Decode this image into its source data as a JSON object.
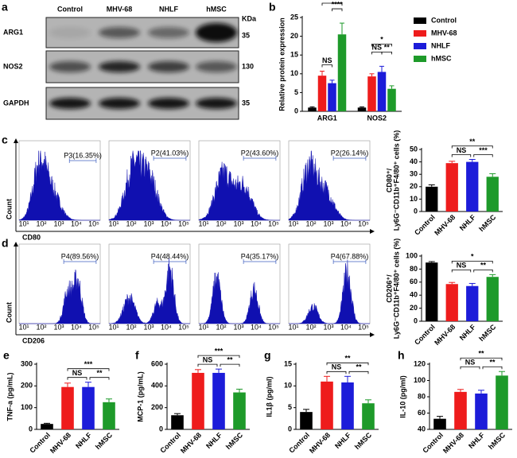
{
  "blot": {
    "panel": "a",
    "lanes": [
      "Control",
      "MHV-68",
      "NHLF",
      "hMSC"
    ],
    "kda_label": "KDa",
    "rows": [
      {
        "name": "ARG1",
        "kda": 35
      },
      {
        "name": "NOS2",
        "kda": 130
      },
      {
        "name": "GAPDH",
        "kda": 35
      }
    ]
  },
  "flow": [
    {
      "panel": "c",
      "ylabel": "Count",
      "xlabel": "CD80",
      "xtick_labels": [
        "10¹",
        "10²",
        "10³",
        "10⁴",
        "10⁵"
      ],
      "gates": [
        "P3(16.35%)",
        "P2(41.03%)",
        "P2(43.60%)",
        "P2(26.14%)"
      ]
    },
    {
      "panel": "d",
      "ylabel": "Count",
      "xlabel": "CD206",
      "xtick_labels": [
        "10¹",
        "10²",
        "10³",
        "10⁴",
        "10⁵"
      ],
      "gates": [
        "P4(89.56%)",
        "P4(48.44%)",
        "P4(35.17%)",
        "P4(67.88%)"
      ]
    }
  ],
  "chart_data": [
    {
      "type": "grouped-bar",
      "panel": "b",
      "ylabel": "Relative protein expression",
      "categories": [
        "ARG1",
        "NOS2"
      ],
      "series": [
        {
          "name": "Control",
          "color": "#000000",
          "values": [
            1,
            1
          ],
          "errors": [
            0.2,
            0.2
          ]
        },
        {
          "name": "MHV-68",
          "color": "#ee1c1c",
          "values": [
            9.5,
            9.3
          ],
          "errors": [
            1.2,
            0.7
          ]
        },
        {
          "name": "NHLF",
          "color": "#1c1cd9",
          "values": [
            7.5,
            10.5
          ],
          "errors": [
            0.8,
            1.5
          ]
        },
        {
          "name": "hMSC",
          "color": "#1e9a2a",
          "values": [
            20.5,
            6
          ],
          "errors": [
            3,
            0.8
          ]
        }
      ],
      "ylim": [
        0,
        25
      ],
      "yticks": [
        0,
        5,
        10,
        15,
        20,
        25
      ],
      "annotations": [
        "***",
        "****",
        "NS",
        "*",
        "NS",
        "**"
      ]
    },
    {
      "type": "bar",
      "ylabel": [
        "CD80⁺/",
        "Ly6G⁻CD11b⁺F4/80⁺ cells (%)"
      ],
      "categories": [
        "Control",
        "MHV-68",
        "NHLF",
        "hMSC"
      ],
      "values": [
        20,
        39,
        40,
        28
      ],
      "errors": [
        1.5,
        1.5,
        2,
        2.5
      ],
      "colors": [
        "#000000",
        "#ee1c1c",
        "#1c1cd9",
        "#1e9a2a"
      ],
      "ylim": [
        0,
        50
      ],
      "yticks": [
        0,
        10,
        20,
        30,
        40,
        50
      ],
      "annotations": [
        "**",
        "NS",
        "***"
      ]
    },
    {
      "type": "bar",
      "ylabel": [
        "CD206⁺/",
        "Ly6G⁻CD11b⁺F4/80⁺ cells (%)"
      ],
      "categories": [
        "Control",
        "MHV-68",
        "NHLF",
        "hMSC"
      ],
      "values": [
        90,
        57,
        54,
        68
      ],
      "errors": [
        1.5,
        2.5,
        4,
        3.5
      ],
      "colors": [
        "#000000",
        "#ee1c1c",
        "#1c1cd9",
        "#1e9a2a"
      ],
      "ylim": [
        0,
        100
      ],
      "yticks": [
        0,
        20,
        40,
        60,
        80,
        100
      ],
      "annotations": [
        "*",
        "NS",
        "**"
      ]
    },
    {
      "type": "bar",
      "panel": "e",
      "ylabel": "TNF-a (pg/mL)",
      "categories": [
        "Control",
        "MHV-68",
        "NHLF",
        "hMSC"
      ],
      "values": [
        25,
        195,
        195,
        125
      ],
      "errors": [
        3,
        18,
        22,
        15
      ],
      "colors": [
        "#000000",
        "#ee1c1c",
        "#1c1cd9",
        "#1e9a2a"
      ],
      "ylim": [
        0,
        300
      ],
      "yticks": [
        0,
        100,
        200,
        300
      ],
      "annotations": [
        "***",
        "NS",
        "**"
      ]
    },
    {
      "type": "bar",
      "panel": "f",
      "ylabel": "MCP-1 (pg/mL)",
      "categories": [
        "Control",
        "MHV-68",
        "NHLF",
        "hMSC"
      ],
      "values": [
        130,
        520,
        520,
        340
      ],
      "errors": [
        15,
        30,
        35,
        30
      ],
      "colors": [
        "#000000",
        "#ee1c1c",
        "#1c1cd9",
        "#1e9a2a"
      ],
      "ylim": [
        0,
        600
      ],
      "yticks": [
        0,
        200,
        400,
        600
      ],
      "annotations": [
        "***",
        "NS",
        "**"
      ]
    },
    {
      "type": "bar",
      "panel": "g",
      "ylabel": "IL1β (pg/ml)",
      "categories": [
        "Control",
        "MHV-68",
        "NHLF",
        "hMSC"
      ],
      "values": [
        4,
        11,
        10.8,
        6
      ],
      "errors": [
        0.6,
        1.2,
        1.4,
        0.8
      ],
      "colors": [
        "#000000",
        "#ee1c1c",
        "#1c1cd9",
        "#1e9a2a"
      ],
      "ylim": [
        0,
        15
      ],
      "yticks": [
        0,
        5,
        10,
        15
      ],
      "annotations": [
        "**",
        "NS",
        "**"
      ]
    },
    {
      "type": "bar",
      "panel": "h",
      "ylabel": "IL-10 (pg/ml)",
      "categories": [
        "Control",
        "MHV-68",
        "NHLF",
        "hMSC"
      ],
      "values": [
        53,
        86,
        84,
        106
      ],
      "errors": [
        3,
        3,
        4,
        5
      ],
      "colors": [
        "#000000",
        "#ee1c1c",
        "#1c1cd9",
        "#1e9a2a"
      ],
      "ylim": [
        40,
        120
      ],
      "yticks": [
        40,
        60,
        80,
        100,
        120
      ],
      "annotations": [
        "**",
        "NS",
        "**"
      ]
    }
  ]
}
